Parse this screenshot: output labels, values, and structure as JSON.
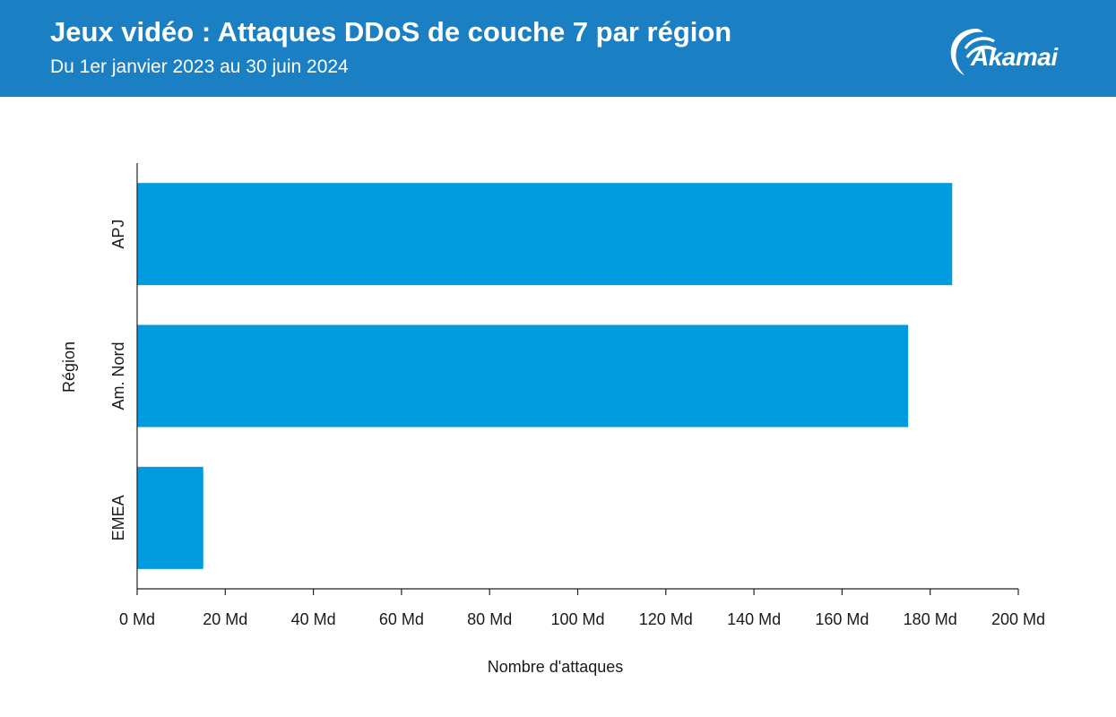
{
  "header": {
    "title": "Jeux vidéo : Attaques DDoS de couche 7 par région",
    "subtitle": "Du 1er janvier 2023 au 30 juin 2024",
    "logo_text": "Akamai",
    "background_color": "#1b7fc4"
  },
  "colors": {
    "bar": "#009ade",
    "axis": "#222222",
    "text": "#1a1a1a"
  },
  "chart_data": {
    "type": "bar",
    "orientation": "horizontal",
    "categories": [
      "APJ",
      "Am. Nord",
      "EMEA"
    ],
    "values": [
      185,
      175,
      15
    ],
    "unit": "Md",
    "xlabel": "Nombre d'attaques",
    "ylabel": "Région",
    "xlim": [
      0,
      200
    ],
    "x_ticks": [
      0,
      20,
      40,
      60,
      80,
      100,
      120,
      140,
      160,
      180,
      200
    ],
    "x_tick_labels": [
      "0 Md",
      "20 Md",
      "40 Md",
      "60 Md",
      "80 Md",
      "100 Md",
      "120 Md",
      "140 Md",
      "160 Md",
      "180 Md",
      "200 Md"
    ],
    "grid": false,
    "legend": "none"
  }
}
